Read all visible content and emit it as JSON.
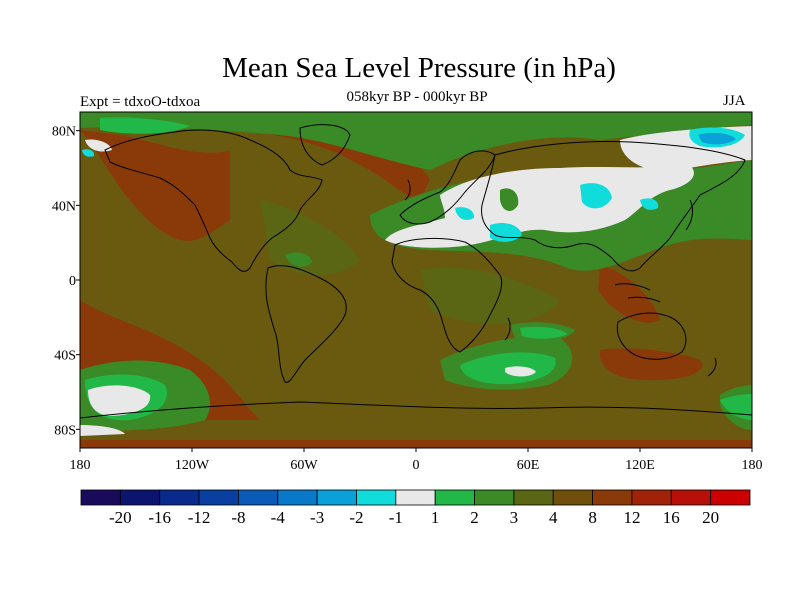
{
  "figure": {
    "title": "Mean Sea Level Pressure (in hPa)",
    "subtitle": "058kyr BP - 000kyr BP",
    "experiment": "Expt = tdxoO-tdxoa",
    "season": "JJA"
  },
  "axes": {
    "lat_ticks": [
      "80N",
      "40N",
      "0",
      "40S",
      "80S"
    ],
    "lat_values": [
      80,
      40,
      0,
      -40,
      -80
    ],
    "lon_ticks": [
      "180",
      "120W",
      "60W",
      "0",
      "60E",
      "120E",
      "180"
    ],
    "lon_values": [
      -180,
      -120,
      -60,
      0,
      60,
      120,
      180
    ],
    "lat_range": [
      -90,
      90
    ],
    "lon_range": [
      -180,
      180
    ]
  },
  "colorbar": {
    "labels": [
      "-20",
      "-16",
      "-12",
      "-8",
      "-4",
      "-3",
      "-2",
      "-1",
      "1",
      "2",
      "3",
      "4",
      "8",
      "12",
      "16",
      "20"
    ],
    "colors": [
      "#1a0a5c",
      "#0c1470",
      "#082a8c",
      "#083fa0",
      "#0a5ab8",
      "#0878c8",
      "#0aa0d8",
      "#10dcdc",
      "#e8e8e8",
      "#22b848",
      "#3a8a28",
      "#5a6614",
      "#704e0c",
      "#8a3a08",
      "#a02208",
      "#b81008",
      "#cc0000"
    ]
  },
  "map_colors": {
    "base": "#6a5a10",
    "green": "#3a8a28",
    "light_green": "#22b848",
    "white": "#e8e8e8",
    "cyan": "#10dcdc",
    "light_blue": "#0aa0d8",
    "brown": "#8a3a08",
    "olive": "#5a6614"
  }
}
